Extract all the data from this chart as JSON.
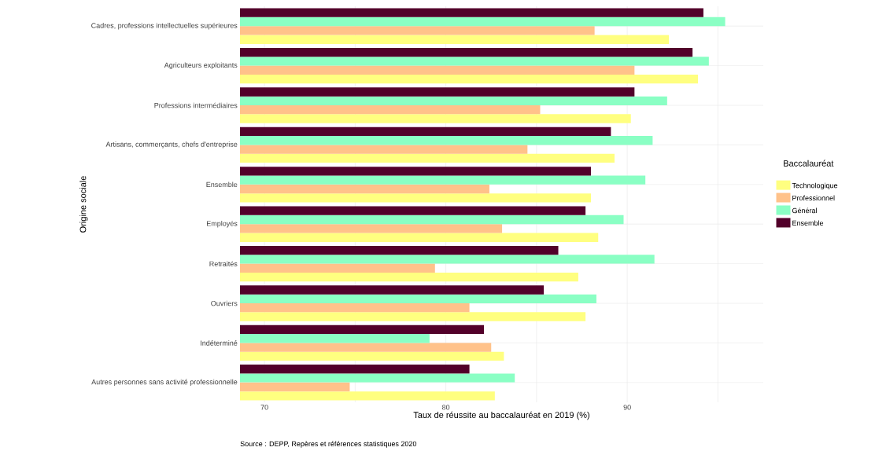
{
  "chart_data": {
    "type": "bar",
    "orientation": "horizontal",
    "xlabel": "Taux de réussite au baccalauréat en 2019 (%)",
    "ylabel": "Origine sociale",
    "legend_title": "Baccalauréat",
    "legend": "right",
    "grid": true,
    "categories": [
      "Cadres, professions intellectuelles supérieures",
      "Agriculteurs exploitants",
      "Professions intermédiaires",
      "Artisans, commerçants, chefs d'entreprise",
      "Ensemble",
      "Employés",
      "Retraités",
      "Ouvriers",
      "Indéterminé",
      "Autres personnes sans activité professionnelle"
    ],
    "series": [
      {
        "name": "Technologique",
        "color": "#ffff80",
        "values": [
          92.3,
          93.9,
          90.2,
          89.3,
          88.0,
          88.4,
          87.3,
          87.7,
          83.2,
          82.7
        ]
      },
      {
        "name": "Professionnel",
        "color": "#ffc28a",
        "values": [
          88.2,
          90.4,
          85.2,
          84.5,
          82.4,
          83.1,
          79.4,
          81.3,
          82.5,
          74.7
        ]
      },
      {
        "name": "Général",
        "color": "#8affc4",
        "values": [
          95.4,
          94.5,
          92.2,
          91.4,
          91.0,
          89.8,
          91.5,
          88.3,
          79.1,
          83.8
        ]
      },
      {
        "name": "Ensemble",
        "color": "#52002a",
        "values": [
          94.2,
          93.6,
          90.4,
          89.1,
          88.0,
          87.7,
          86.2,
          85.4,
          82.1,
          81.3
        ]
      }
    ],
    "xlim": [
      68.65,
      97.5
    ],
    "xticks": [
      70,
      {
        "value": 75,
        "label": null
      },
      80,
      {
        "value": 85,
        "label": null
      },
      90,
      {
        "value": 95,
        "label": null
      }
    ],
    "annotations": [
      "Source : DEPP, Repères et références statistiques 2020"
    ]
  }
}
